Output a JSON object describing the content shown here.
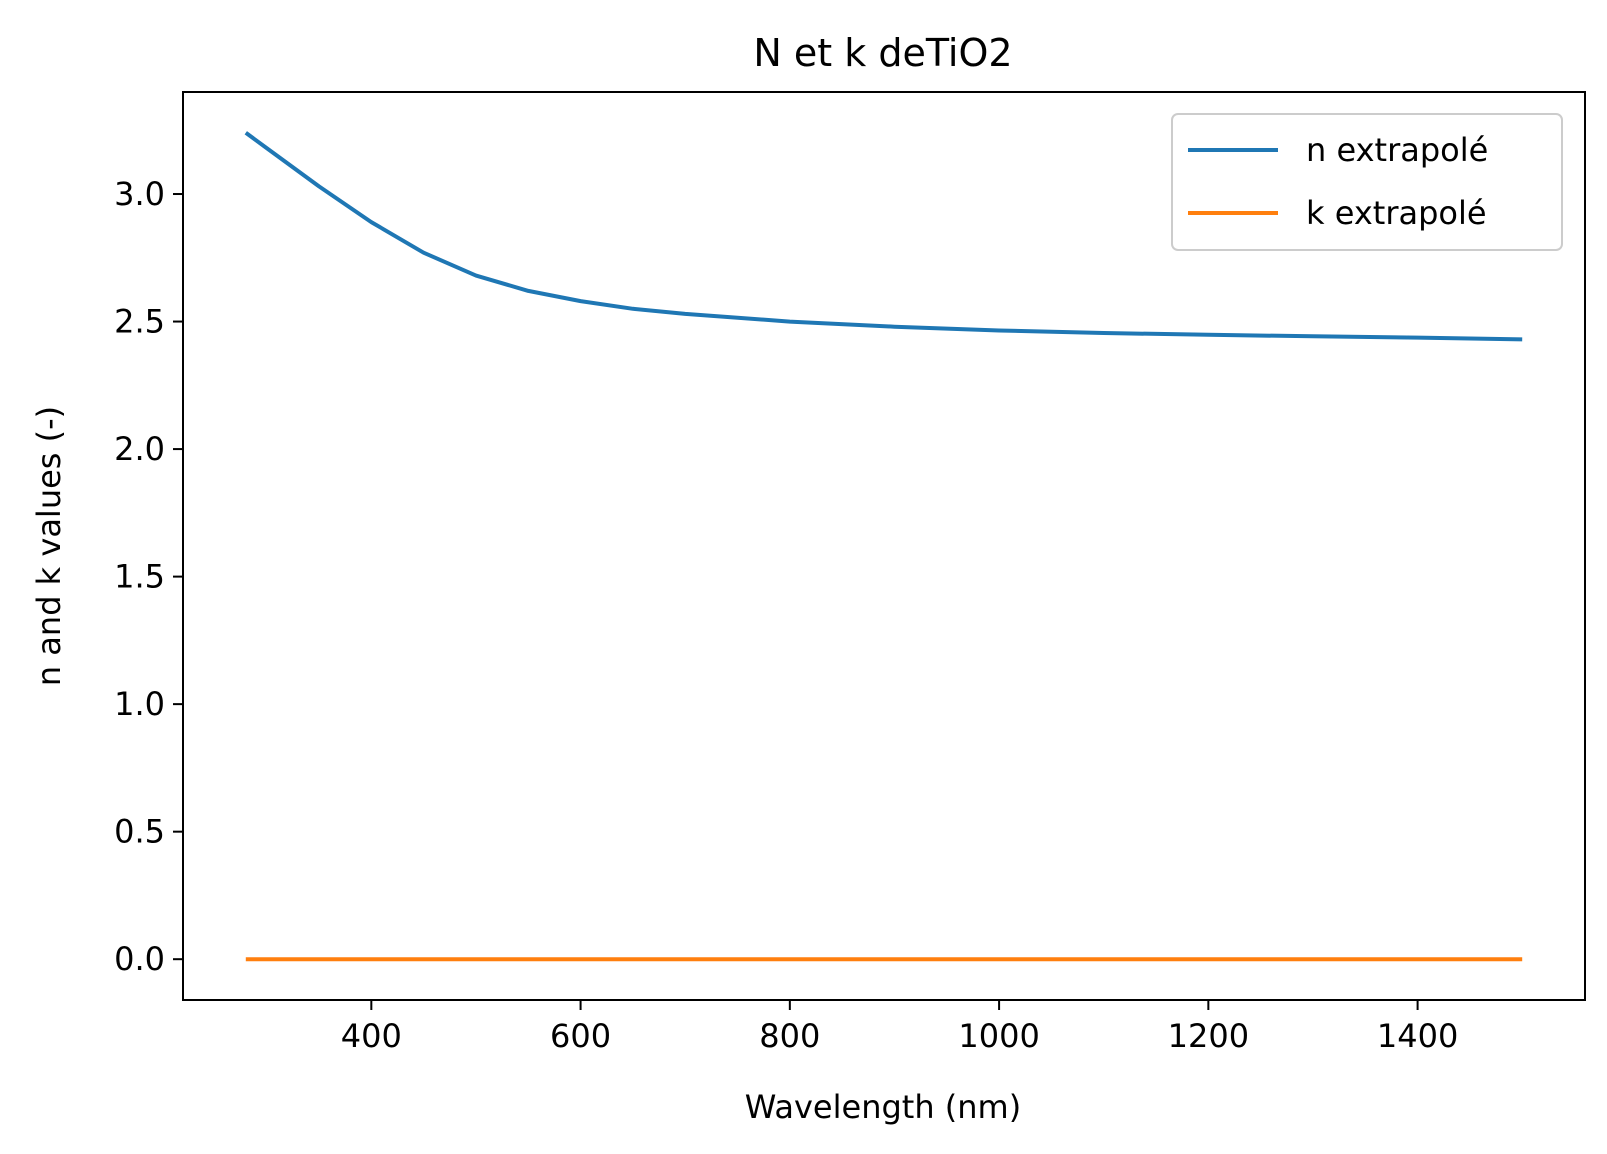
{
  "chart_data": {
    "type": "line",
    "title": "N et k deTiO2",
    "xlabel": "Wavelength (nm)",
    "ylabel": "n and k values (-)",
    "xlim": [
      220,
      1560
    ],
    "ylim": [
      -0.16,
      3.4
    ],
    "xticks": [
      400,
      600,
      800,
      1000,
      1200,
      1400
    ],
    "xtick_labels": [
      "400",
      "600",
      "800",
      "1000",
      "1200",
      "1400"
    ],
    "yticks": [
      0.0,
      0.5,
      1.0,
      1.5,
      2.0,
      2.5,
      3.0
    ],
    "ytick_labels": [
      "0.0",
      "0.5",
      "1.0",
      "1.5",
      "2.0",
      "2.5",
      "3.0"
    ],
    "grid": false,
    "legend_position": "top-right",
    "series": [
      {
        "name": "n extrapolé",
        "color": "#1f77b4",
        "x": [
          280,
          300,
          350,
          400,
          450,
          500,
          550,
          600,
          650,
          700,
          800,
          900,
          1000,
          1100,
          1200,
          1300,
          1400,
          1500
        ],
        "y": [
          3.24,
          3.18,
          3.03,
          2.89,
          2.77,
          2.68,
          2.62,
          2.58,
          2.55,
          2.53,
          2.5,
          2.48,
          2.465,
          2.455,
          2.448,
          2.442,
          2.437,
          2.43
        ]
      },
      {
        "name": "k extrapolé",
        "color": "#ff7f0e",
        "x": [
          280,
          1500
        ],
        "y": [
          0.0,
          0.0
        ]
      }
    ]
  }
}
